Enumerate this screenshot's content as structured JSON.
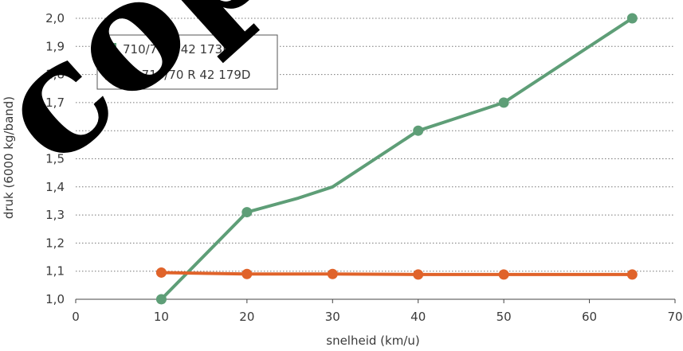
{
  "chart_data": {
    "type": "line",
    "xlabel": "snelheid (km/u)",
    "ylabel": "druk (6000 kg/band)",
    "xlim": [
      0,
      70
    ],
    "ylim": [
      1.0,
      2.0
    ],
    "xticks": [
      "0",
      "10",
      "20",
      "30",
      "40",
      "50",
      "60",
      "70"
    ],
    "yticks": [
      "1,0",
      "1,1",
      "1,2",
      "1,3",
      "1,4",
      "1,5",
      "1,6",
      "1,7",
      "1,8",
      "1,9",
      "2,0"
    ],
    "grid": "horizontal-dotted",
    "legend_position": "top-left",
    "series": [
      {
        "name": "710/70 R 42 173D",
        "color": "#5e9e77",
        "marker_x": [
          10,
          20,
          40,
          50,
          65
        ],
        "marker_y": [
          1.0,
          1.31,
          1.6,
          1.7,
          2.0
        ],
        "line": [
          [
            10,
            1.0
          ],
          [
            20,
            1.31
          ],
          [
            26,
            1.36
          ],
          [
            30,
            1.4
          ],
          [
            40,
            1.6
          ],
          [
            44,
            1.64
          ],
          [
            50,
            1.7
          ],
          [
            65,
            2.0
          ]
        ]
      },
      {
        "name": "VF 710/70 R 42 179D",
        "color": "#e0632a",
        "marker_x": [
          10,
          20,
          30,
          40,
          50,
          65
        ],
        "marker_y": [
          1.095,
          1.09,
          1.09,
          1.088,
          1.088,
          1.088
        ],
        "line": [
          [
            10,
            1.095
          ],
          [
            20,
            1.09
          ],
          [
            30,
            1.09
          ],
          [
            40,
            1.088
          ],
          [
            50,
            1.088
          ],
          [
            65,
            1.088
          ]
        ]
      }
    ]
  },
  "watermark": {
    "text": "copy",
    "color": "#000000"
  }
}
